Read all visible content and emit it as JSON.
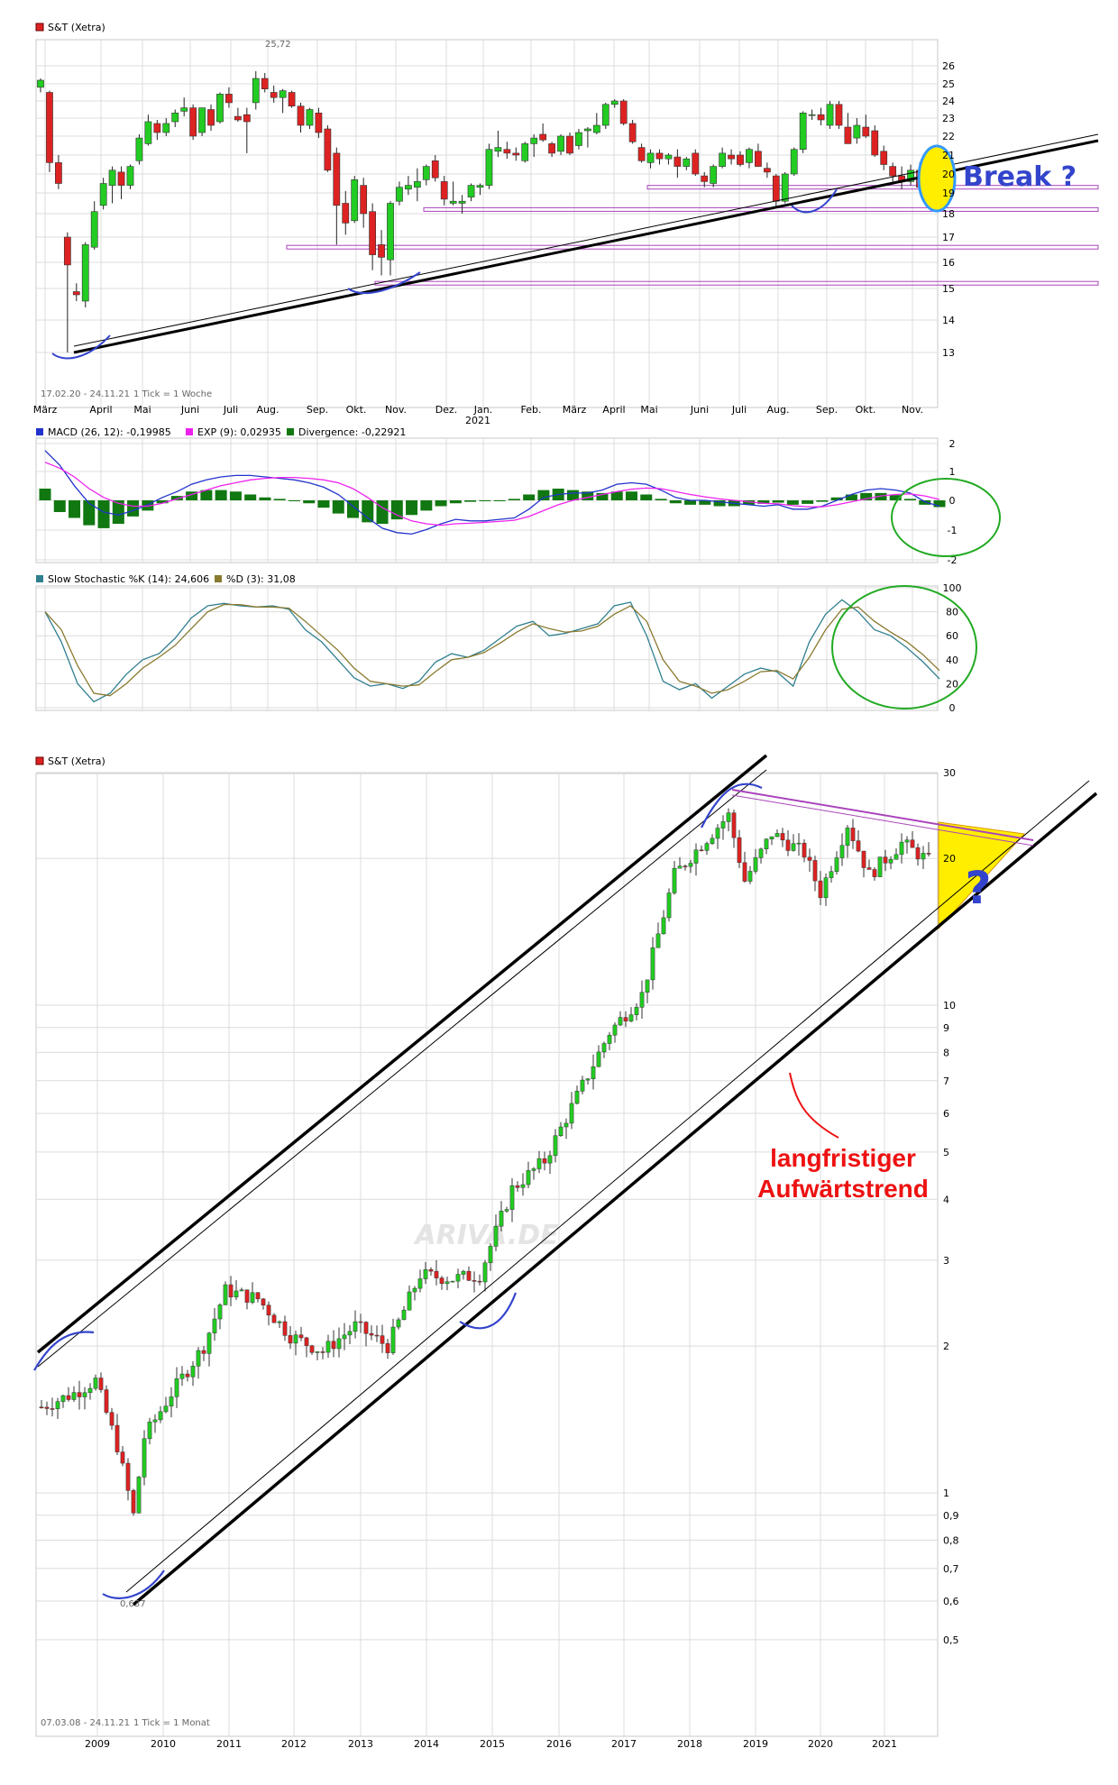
{
  "colors": {
    "up": "#22cc22",
    "down": "#dd2222",
    "grid": "#dcdcdc",
    "trend": "#000000",
    "support": "#aa44bb",
    "annotation_blue": "#3344cc",
    "annotation_green": "#22aa22",
    "macd": "#2233cc",
    "exp": "#ee22ee",
    "divergence": "#117711",
    "stoch_k": "#2f7f8f",
    "stoch_d": "#8a7a30",
    "highlight": "#ffee00",
    "red_text": "#ee1111"
  },
  "weekly": {
    "title": "S&T (Xetra)",
    "range_text": "17.02.20 - 24.11.21",
    "tick_text": "1 Tick = 1 Woche",
    "high_label": "25,72",
    "annotation": "Break ?",
    "y_ticks": [
      "13",
      "14",
      "15",
      "16",
      "17",
      "18",
      "19",
      "20",
      "21",
      "22",
      "23",
      "24",
      "25",
      "26"
    ],
    "x_ticks": [
      "März",
      "April",
      "Mai",
      "Juni",
      "Juli",
      "Aug.",
      "Sep.",
      "Okt.",
      "Nov.",
      "Dez.",
      "Jan.",
      "Feb.",
      "März",
      "April",
      "Mai",
      "Juni",
      "Juli",
      "Aug.",
      "Sep.",
      "Okt.",
      "Nov."
    ],
    "year_label": "2021",
    "chart_data": {
      "type": "candlestick",
      "interval": "weekly",
      "ylim": [
        12.5,
        26.5
      ],
      "x_start": "2020-02-17",
      "x_end": "2021-11-24",
      "candles": [
        [
          24.8,
          25.3,
          24.5,
          25.2
        ],
        [
          24.5,
          24.6,
          20.1,
          20.6
        ],
        [
          20.6,
          21.0,
          19.2,
          19.5
        ],
        [
          17.0,
          17.2,
          13.0,
          15.9
        ],
        [
          14.9,
          15.2,
          14.6,
          14.8
        ],
        [
          14.6,
          16.8,
          14.4,
          16.7
        ],
        [
          16.6,
          18.6,
          16.5,
          18.1
        ],
        [
          18.4,
          19.8,
          18.2,
          19.5
        ],
        [
          19.4,
          20.4,
          18.5,
          20.2
        ],
        [
          20.1,
          20.4,
          18.7,
          19.4
        ],
        [
          19.4,
          20.5,
          19.2,
          20.4
        ],
        [
          20.7,
          22.1,
          20.5,
          21.9
        ],
        [
          21.6,
          23.2,
          21.5,
          22.8
        ],
        [
          22.7,
          22.9,
          21.8,
          22.2
        ],
        [
          22.2,
          23.0,
          22.0,
          22.7
        ],
        [
          22.8,
          23.5,
          22.5,
          23.3
        ],
        [
          23.4,
          24.2,
          23.1,
          23.6
        ],
        [
          23.6,
          23.8,
          21.8,
          22.0
        ],
        [
          22.2,
          23.6,
          22.0,
          23.6
        ],
        [
          23.5,
          23.8,
          22.3,
          22.6
        ],
        [
          22.8,
          24.5,
          22.7,
          24.4
        ],
        [
          24.4,
          24.8,
          23.6,
          23.9
        ],
        [
          23.1,
          23.6,
          22.8,
          22.9
        ],
        [
          23.2,
          23.6,
          21.1,
          22.8
        ],
        [
          23.9,
          25.7,
          23.5,
          25.3
        ],
        [
          25.3,
          25.6,
          24.5,
          24.7
        ],
        [
          24.5,
          24.9,
          23.9,
          24.2
        ],
        [
          24.2,
          24.7,
          23.3,
          24.6
        ],
        [
          24.5,
          24.6,
          23.6,
          23.7
        ],
        [
          23.7,
          23.9,
          22.2,
          22.6
        ],
        [
          22.6,
          23.6,
          22.4,
          23.5
        ],
        [
          23.3,
          23.6,
          21.9,
          22.2
        ],
        [
          22.4,
          22.6,
          20.1,
          20.2
        ],
        [
          21.1,
          21.4,
          16.7,
          18.4
        ],
        [
          18.5,
          19.1,
          17.1,
          17.6
        ],
        [
          17.7,
          19.9,
          17.6,
          19.7
        ],
        [
          19.4,
          19.8,
          17.4,
          18.0
        ],
        [
          18.1,
          18.5,
          15.7,
          16.3
        ],
        [
          16.7,
          17.3,
          15.5,
          16.2
        ],
        [
          16.1,
          18.6,
          15.5,
          18.5
        ],
        [
          18.6,
          19.6,
          18.4,
          19.3
        ],
        [
          19.2,
          19.9,
          18.9,
          19.4
        ],
        [
          19.3,
          20.3,
          18.6,
          19.6
        ],
        [
          19.7,
          20.5,
          19.4,
          20.4
        ],
        [
          20.7,
          21.0,
          19.6,
          19.8
        ],
        [
          19.6,
          19.9,
          18.4,
          18.7
        ],
        [
          18.5,
          19.6,
          18.4,
          18.6
        ],
        [
          18.5,
          18.9,
          18.0,
          18.6
        ],
        [
          18.8,
          19.5,
          18.6,
          19.4
        ],
        [
          19.3,
          19.5,
          18.9,
          19.4
        ],
        [
          19.4,
          21.6,
          19.2,
          21.3
        ],
        [
          21.2,
          22.3,
          20.9,
          21.4
        ],
        [
          21.3,
          21.7,
          20.8,
          21.1
        ],
        [
          21.1,
          21.4,
          20.7,
          21.0
        ],
        [
          20.7,
          21.7,
          20.6,
          21.6
        ],
        [
          21.6,
          22.1,
          20.9,
          21.9
        ],
        [
          22.1,
          22.7,
          21.7,
          21.8
        ],
        [
          21.6,
          21.7,
          20.9,
          21.1
        ],
        [
          21.2,
          22.1,
          21.0,
          22.0
        ],
        [
          22.0,
          22.2,
          21.0,
          21.1
        ],
        [
          21.5,
          22.4,
          21.3,
          22.2
        ],
        [
          22.3,
          22.5,
          21.4,
          22.4
        ],
        [
          22.2,
          23.3,
          22.1,
          22.6
        ],
        [
          22.6,
          23.9,
          22.4,
          23.8
        ],
        [
          23.8,
          24.1,
          23.6,
          24.0
        ],
        [
          24.0,
          24.1,
          22.6,
          22.7
        ],
        [
          22.7,
          22.9,
          21.6,
          21.7
        ],
        [
          21.4,
          21.6,
          20.6,
          20.7
        ],
        [
          20.6,
          21.3,
          20.3,
          21.1
        ],
        [
          21.1,
          21.3,
          20.5,
          20.8
        ],
        [
          20.8,
          21.1,
          20.5,
          21.0
        ],
        [
          20.9,
          21.3,
          19.8,
          20.4
        ],
        [
          20.4,
          20.9,
          20.2,
          20.8
        ],
        [
          21.1,
          21.3,
          19.9,
          20.0
        ],
        [
          19.9,
          20.1,
          19.3,
          19.6
        ],
        [
          19.5,
          20.5,
          19.3,
          20.4
        ],
        [
          20.4,
          21.4,
          20.3,
          21.1
        ],
        [
          21.0,
          21.3,
          20.5,
          20.8
        ],
        [
          21.0,
          21.2,
          20.4,
          20.5
        ],
        [
          20.6,
          21.4,
          20.3,
          21.3
        ],
        [
          21.2,
          21.6,
          20.4,
          20.4
        ],
        [
          20.3,
          20.6,
          19.8,
          20.1
        ],
        [
          19.9,
          20.0,
          18.3,
          18.6
        ],
        [
          18.6,
          20.1,
          18.5,
          20.0
        ],
        [
          20.0,
          21.4,
          19.9,
          21.3
        ],
        [
          21.3,
          23.4,
          21.1,
          23.3
        ],
        [
          23.2,
          23.5,
          22.9,
          23.2
        ],
        [
          23.2,
          23.6,
          22.6,
          22.9
        ],
        [
          22.6,
          24.0,
          22.4,
          23.8
        ],
        [
          23.8,
          24.0,
          22.4,
          22.6
        ],
        [
          22.5,
          23.3,
          21.6,
          21.6
        ],
        [
          21.9,
          23.0,
          21.6,
          22.6
        ],
        [
          22.5,
          23.2,
          21.9,
          22.0
        ],
        [
          22.3,
          22.6,
          20.9,
          21.0
        ],
        [
          21.2,
          21.5,
          20.2,
          20.5
        ],
        [
          20.4,
          20.6,
          19.6,
          19.9
        ],
        [
          19.9,
          20.4,
          19.2,
          19.6
        ],
        [
          19.6,
          20.5,
          19.4,
          20.2
        ],
        [
          20.2,
          20.6,
          19.3,
          19.3
        ]
      ],
      "trendline": {
        "from": [
          "2020-04-06",
          13.0
        ],
        "to": [
          "2021-11-24",
          19.6
        ]
      },
      "support_levels": [
        19.3,
        18.2,
        16.6,
        15.2
      ]
    }
  },
  "macd": {
    "legend": [
      {
        "name": "MACD (26, 12): -0,19985"
      },
      {
        "name": "EXP (9): 0,02935"
      },
      {
        "name": "Divergence: -0,22921"
      }
    ],
    "y_ticks": [
      "2",
      "1",
      "0",
      "-1",
      "-2"
    ],
    "chart_data": {
      "type": "line",
      "ylim": [
        -2,
        2
      ],
      "series": [
        {
          "name": "MACD (26, 12)",
          "values": [
            1.7,
            1.2,
            0.5,
            -0.1,
            -0.4,
            -0.5,
            -0.35,
            -0.15,
            0.1,
            0.3,
            0.55,
            0.7,
            0.8,
            0.85,
            0.85,
            0.8,
            0.75,
            0.7,
            0.6,
            0.45,
            0.2,
            -0.2,
            -0.6,
            -0.95,
            -1.1,
            -1.15,
            -1.0,
            -0.8,
            -0.65,
            -0.7,
            -0.7,
            -0.65,
            -0.6,
            -0.3,
            0.1,
            0.2,
            0.25,
            0.25,
            0.35,
            0.55,
            0.6,
            0.55,
            0.35,
            0.1,
            0.0,
            0.0,
            -0.05,
            -0.1,
            -0.15,
            -0.2,
            -0.15,
            -0.3,
            -0.3,
            -0.2,
            0.0,
            0.2,
            0.35,
            0.4,
            0.35,
            0.25,
            -0.05,
            -0.2
          ]
        },
        {
          "name": "EXP (9)",
          "values": [
            1.3,
            1.1,
            0.8,
            0.4,
            0.1,
            -0.1,
            -0.2,
            -0.2,
            -0.1,
            0.05,
            0.2,
            0.35,
            0.5,
            0.6,
            0.7,
            0.75,
            0.78,
            0.78,
            0.75,
            0.7,
            0.6,
            0.4,
            0.1,
            -0.25,
            -0.5,
            -0.7,
            -0.8,
            -0.85,
            -0.8,
            -0.78,
            -0.75,
            -0.72,
            -0.68,
            -0.55,
            -0.35,
            -0.15,
            0.0,
            0.1,
            0.2,
            0.3,
            0.38,
            0.42,
            0.4,
            0.3,
            0.2,
            0.12,
            0.05,
            0.0,
            -0.05,
            -0.1,
            -0.12,
            -0.18,
            -0.22,
            -0.22,
            -0.15,
            -0.05,
            0.05,
            0.15,
            0.2,
            0.22,
            0.15,
            0.03
          ]
        }
      ],
      "divergence": [
        0.4,
        -0.4,
        -0.6,
        -0.85,
        -0.95,
        -0.8,
        -0.55,
        -0.35,
        -0.1,
        0.15,
        0.3,
        0.35,
        0.35,
        0.3,
        0.2,
        0.1,
        0.05,
        0.0,
        -0.1,
        -0.25,
        -0.45,
        -0.6,
        -0.75,
        -0.8,
        -0.65,
        -0.5,
        -0.35,
        -0.2,
        -0.1,
        -0.05,
        -0.02,
        0.0,
        0.05,
        0.2,
        0.35,
        0.4,
        0.35,
        0.3,
        0.25,
        0.3,
        0.3,
        0.2,
        0.05,
        -0.1,
        -0.15,
        -0.15,
        -0.2,
        -0.2,
        -0.15,
        -0.12,
        -0.08,
        -0.15,
        -0.12,
        -0.05,
        0.1,
        0.2,
        0.25,
        0.25,
        0.18,
        0.05,
        -0.15,
        -0.23
      ]
    }
  },
  "stoch": {
    "legend": [
      {
        "name": "Slow Stochastic %K (14): 24,606"
      },
      {
        "name": "%D (3): 31,08"
      }
    ],
    "y_ticks": [
      "100",
      "80",
      "60",
      "40",
      "20",
      "0"
    ],
    "chart_data": {
      "type": "line",
      "ylim": [
        0,
        100
      ],
      "series": [
        {
          "name": "Slow Stochastic %K (14)",
          "values": [
            80,
            55,
            20,
            5,
            12,
            28,
            40,
            45,
            58,
            75,
            85,
            87,
            85,
            84,
            85,
            82,
            65,
            55,
            40,
            25,
            18,
            20,
            16,
            22,
            38,
            45,
            42,
            48,
            58,
            68,
            72,
            60,
            62,
            66,
            70,
            85,
            88,
            60,
            22,
            15,
            20,
            8,
            18,
            28,
            33,
            30,
            18,
            55,
            78,
            90,
            80,
            65,
            60,
            50,
            38,
            24
          ]
        },
        {
          "name": "%D (3)",
          "values": [
            80,
            65,
            35,
            12,
            10,
            20,
            33,
            42,
            52,
            66,
            80,
            86,
            86,
            84,
            84,
            83,
            72,
            60,
            48,
            33,
            22,
            20,
            18,
            19,
            30,
            40,
            42,
            46,
            54,
            63,
            70,
            66,
            63,
            64,
            68,
            78,
            85,
            72,
            40,
            22,
            18,
            12,
            15,
            22,
            30,
            31,
            24,
            42,
            65,
            82,
            84,
            72,
            63,
            55,
            44,
            31
          ]
        }
      ]
    }
  },
  "monthly": {
    "title": "S&T (Xetra)",
    "range_text": "07.03.08 - 24.11.21",
    "tick_text": "1 Tick = 1 Monat",
    "low_label": "0,637",
    "watermark": "ARIVA.DE",
    "question": "?",
    "annotation_line1": "langfristiger",
    "annotation_line2": "Aufwärtstrend",
    "y_ticks": [
      "0,5",
      "0,6",
      "0,7",
      "0,8",
      "0,9",
      "1",
      "2",
      "3",
      "4",
      "5",
      "6",
      "7",
      "8",
      "9",
      "10",
      "20",
      "30"
    ],
    "x_ticks": [
      "2009",
      "2010",
      "2011",
      "2012",
      "2013",
      "2014",
      "2015",
      "2016",
      "2017",
      "2018",
      "2019",
      "2020",
      "2021"
    ],
    "chart_data": {
      "type": "candlestick",
      "interval": "monthly",
      "yscale": "log",
      "ylim": [
        0.42,
        31
      ],
      "x_start": "2008-03",
      "x_end": "2021-11",
      "anchors": [
        [
          "2008-03",
          1.5
        ],
        [
          "2008-09",
          1.6
        ],
        [
          "2009-01",
          1.7
        ],
        [
          "2009-05",
          1.25
        ],
        [
          "2009-08",
          0.9
        ],
        [
          "2009-10",
          1.3
        ],
        [
          "2010-03",
          1.6
        ],
        [
          "2010-09",
          2.0
        ],
        [
          "2011-01",
          2.6
        ],
        [
          "2011-07",
          2.5
        ],
        [
          "2012-01",
          2.1
        ],
        [
          "2012-07",
          1.95
        ],
        [
          "2013-01",
          2.2
        ],
        [
          "2013-07",
          2.0
        ],
        [
          "2014-01",
          2.8
        ],
        [
          "2014-07",
          2.75
        ],
        [
          "2014-12",
          2.8
        ],
        [
          "2015-06",
          4.2
        ],
        [
          "2015-12",
          4.8
        ],
        [
          "2016-06",
          6.5
        ],
        [
          "2016-12",
          8.8
        ],
        [
          "2017-06",
          10.5
        ],
        [
          "2017-12",
          18.5
        ],
        [
          "2018-06",
          22.0
        ],
        [
          "2018-10",
          24.5
        ],
        [
          "2019-01",
          18.0
        ],
        [
          "2019-06",
          22.5
        ],
        [
          "2019-12",
          20.5
        ],
        [
          "2020-03",
          17.0
        ],
        [
          "2020-08",
          23.5
        ],
        [
          "2020-12",
          18.5
        ],
        [
          "2021-06",
          21.5
        ],
        [
          "2021-11",
          19.8
        ]
      ],
      "channel_upper": {
        "from": [
          "2008-03",
          1.9
        ],
        "to": [
          "2018-10",
          30
        ]
      },
      "channel_lower": {
        "from": [
          "2009-08",
          0.66
        ],
        "to": [
          "2021-11",
          18
        ]
      },
      "resistance": {
        "from": [
          "2018-09",
          27.5
        ],
        "to": [
          "2021-11",
          23.5
        ]
      }
    }
  }
}
